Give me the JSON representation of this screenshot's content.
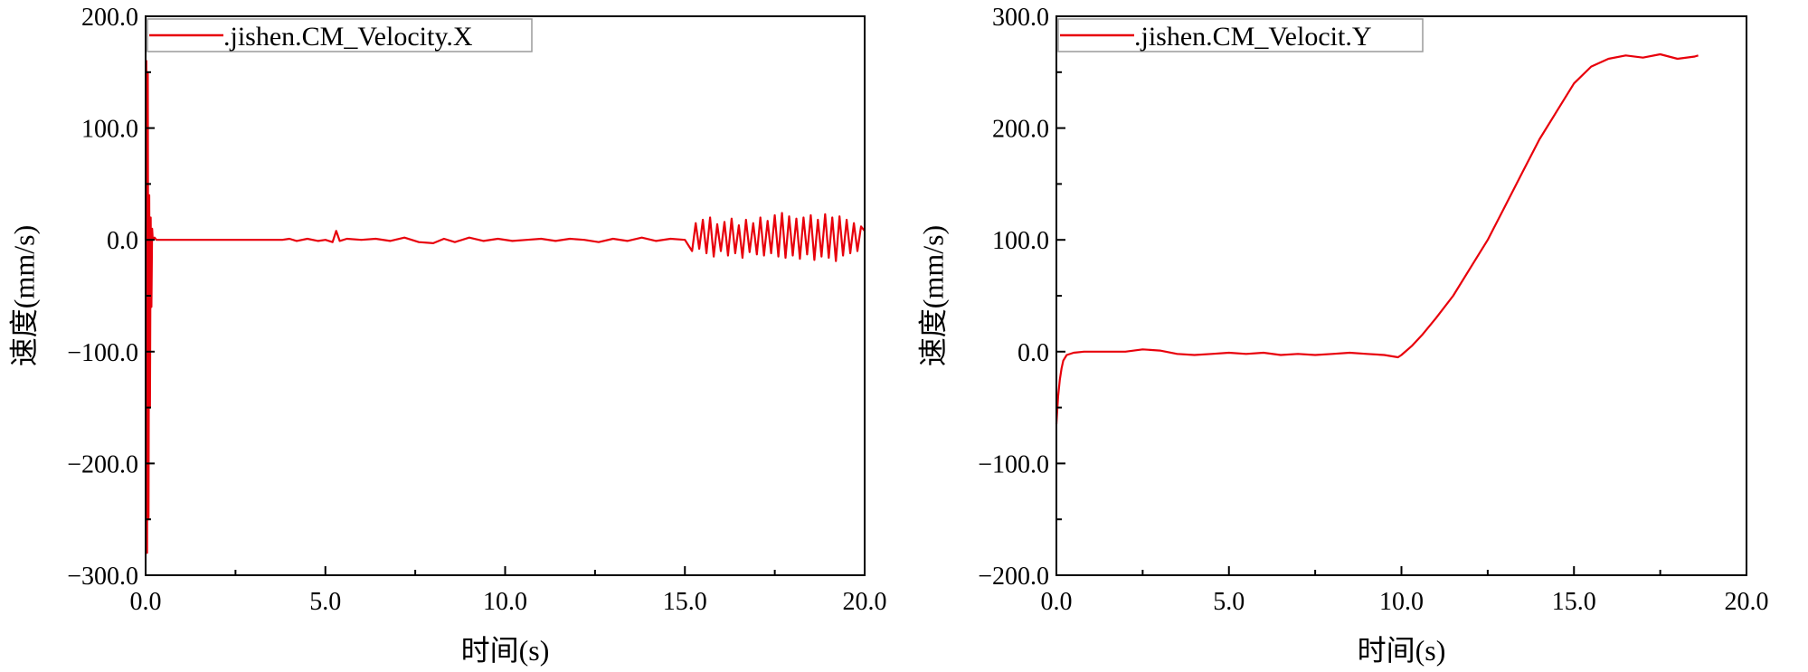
{
  "chart_data": [
    {
      "type": "line",
      "xlabel": "时间(s)",
      "ylabel": "速度(mm/s)",
      "xlim": [
        0,
        20
      ],
      "ylim": [
        -300,
        200
      ],
      "xticks": [
        "0.0",
        "5.0",
        "10.0",
        "15.0",
        "20.0"
      ],
      "yticks": [
        "200.0",
        "100.0",
        "0.0",
        "−100.0",
        "−200.0",
        "−300.0"
      ],
      "xtick_values": [
        0,
        5,
        10,
        15,
        20
      ],
      "ytick_values": [
        200,
        100,
        0,
        -100,
        -200,
        -300
      ],
      "legend_position": "top-left",
      "grid": false,
      "series": [
        {
          "name": ".jishen.CM_Velocity.X",
          "color": "#e8000b",
          "x": [
            0.0,
            0.02,
            0.04,
            0.06,
            0.08,
            0.1,
            0.12,
            0.14,
            0.16,
            0.18,
            0.2,
            0.25,
            0.3,
            0.5,
            1.0,
            2.0,
            3.0,
            3.8,
            4.0,
            4.2,
            4.5,
            4.8,
            5.0,
            5.2,
            5.3,
            5.4,
            5.6,
            6.0,
            6.4,
            6.8,
            7.2,
            7.6,
            8.0,
            8.3,
            8.6,
            9.0,
            9.4,
            9.8,
            10.2,
            10.6,
            11.0,
            11.4,
            11.8,
            12.2,
            12.6,
            13.0,
            13.4,
            13.8,
            14.2,
            14.6,
            15.0,
            15.2,
            15.3,
            15.4,
            15.5,
            15.6,
            15.7,
            15.8,
            15.9,
            16.0,
            16.1,
            16.2,
            16.3,
            16.4,
            16.5,
            16.6,
            16.7,
            16.8,
            16.9,
            17.0,
            17.1,
            17.2,
            17.3,
            17.4,
            17.5,
            17.6,
            17.7,
            17.8,
            17.9,
            18.0,
            18.1,
            18.2,
            18.3,
            18.4,
            18.5,
            18.6,
            18.7,
            18.8,
            18.9,
            19.0,
            19.1,
            19.2,
            19.3,
            19.4,
            19.5,
            19.6,
            19.7,
            19.8,
            19.9,
            20.0
          ],
          "y": [
            0,
            160,
            -280,
            150,
            -250,
            40,
            -150,
            20,
            -60,
            10,
            0,
            2,
            0,
            0,
            0,
            0,
            0,
            0,
            1,
            -1,
            1,
            -1,
            0,
            -2,
            8,
            -1,
            1,
            0,
            1,
            -1,
            2,
            -2,
            -3,
            1,
            -2,
            2,
            -1,
            1,
            -1,
            0,
            1,
            -1,
            1,
            0,
            -2,
            1,
            -1,
            2,
            -1,
            1,
            0,
            -10,
            15,
            -8,
            18,
            -12,
            20,
            -15,
            14,
            -10,
            16,
            -14,
            19,
            -12,
            13,
            -16,
            18,
            -11,
            15,
            -13,
            20,
            -14,
            17,
            -12,
            22,
            -15,
            24,
            -16,
            21,
            -14,
            19,
            -17,
            20,
            -13,
            22,
            -18,
            18,
            -15,
            23,
            -16,
            20,
            -19,
            21,
            -14,
            18,
            -12,
            15,
            -10,
            12,
            8
          ]
        }
      ]
    },
    {
      "type": "line",
      "xlabel": "时间(s)",
      "ylabel": "速度(mm/s)",
      "xlim": [
        0,
        20
      ],
      "ylim": [
        -200,
        300
      ],
      "xticks": [
        "0.0",
        "5.0",
        "10.0",
        "15.0",
        "20.0"
      ],
      "yticks": [
        "300.0",
        "200.0",
        "100.0",
        "0.0",
        "−100.0",
        "−200.0"
      ],
      "xtick_values": [
        0,
        5,
        10,
        15,
        20
      ],
      "ytick_values": [
        300,
        200,
        100,
        0,
        -100,
        -200
      ],
      "legend_position": "top-left",
      "grid": false,
      "series": [
        {
          "name": ".jishen.CM_Velocit.Y",
          "color": "#e8000b",
          "x": [
            0.0,
            0.05,
            0.1,
            0.15,
            0.2,
            0.3,
            0.5,
            0.8,
            1.0,
            2.0,
            2.5,
            3.0,
            3.5,
            4.0,
            4.5,
            5.0,
            5.5,
            6.0,
            6.5,
            7.0,
            7.5,
            8.0,
            8.5,
            9.0,
            9.5,
            9.9,
            10.0,
            10.3,
            10.6,
            11.0,
            11.5,
            12.0,
            12.5,
            13.0,
            13.5,
            14.0,
            14.5,
            15.0,
            15.5,
            16.0,
            16.5,
            17.0,
            17.5,
            18.0,
            18.5,
            18.6
          ],
          "y": [
            -65,
            -40,
            -25,
            -15,
            -8,
            -3,
            -1,
            0,
            0,
            0,
            2,
            1,
            -2,
            -3,
            -2,
            -1,
            -2,
            -1,
            -3,
            -2,
            -3,
            -2,
            -1,
            -2,
            -3,
            -5,
            -3,
            5,
            15,
            30,
            50,
            75,
            100,
            130,
            160,
            190,
            215,
            240,
            255,
            262,
            265,
            263,
            266,
            262,
            264,
            265
          ]
        }
      ]
    }
  ]
}
